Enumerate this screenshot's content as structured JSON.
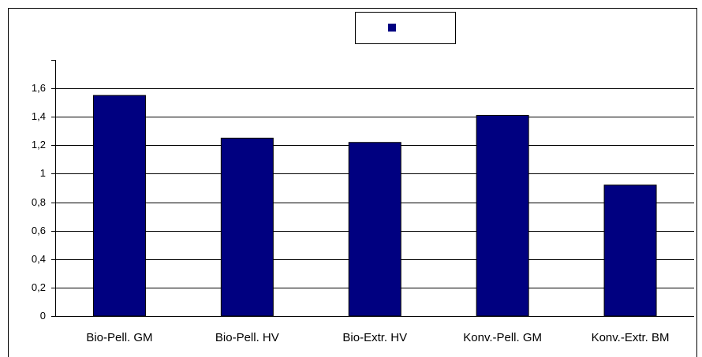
{
  "chart_data": {
    "type": "bar",
    "categories": [
      "Bio-Pell. GM",
      "Bio-Pell. HV",
      "Bio-Extr. HV",
      "Konv.-Pell. GM",
      "Konv.-Extr. BM"
    ],
    "values": [
      1.55,
      1.25,
      1.22,
      1.41,
      0.92
    ],
    "color": "#000080",
    "ylim": [
      0,
      1.8
    ],
    "yticks": [
      0,
      {
        "value": 0.2,
        "label": "0,2"
      },
      {
        "value": 0.4,
        "label": "0,4"
      },
      {
        "value": 0.6,
        "label": "0,6"
      },
      {
        "value": 0.8,
        "label": "0,8"
      },
      1,
      {
        "value": 1.2,
        "label": "1,2"
      },
      {
        "value": 1.4,
        "label": "1,4"
      },
      {
        "value": 1.6,
        "label": "1,6"
      }
    ],
    "grid": true
  }
}
